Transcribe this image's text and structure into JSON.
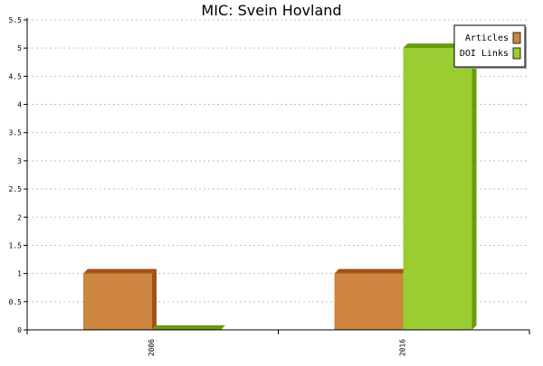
{
  "chart_data": {
    "type": "bar",
    "title": "MIC: Svein Hovland",
    "xlabel": "",
    "ylabel": "",
    "categories": [
      "2006",
      "2016"
    ],
    "series": [
      {
        "name": "Articles",
        "values": [
          1,
          1
        ],
        "color": "#cd853f",
        "side_color": "#a0521a"
      },
      {
        "name": "DOI Links",
        "values": [
          0,
          5
        ],
        "color": "#9acd32",
        "side_color": "#6a9a10"
      }
    ],
    "ylim": [
      0,
      5.5
    ],
    "yticks": [
      "0",
      "0.5",
      "1",
      "1.5",
      "2",
      "2.5",
      "3",
      "3.5",
      "4",
      "4.5",
      "5",
      "5.5"
    ],
    "grid": true,
    "legend_position": "top-right"
  }
}
